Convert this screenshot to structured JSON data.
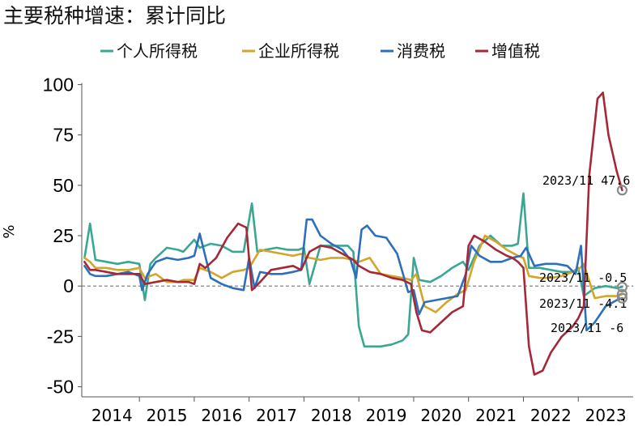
{
  "chart_data": {
    "type": "line",
    "title": "主要税种增速：累计同比",
    "ylabel": "%",
    "ylim": [
      -55,
      105
    ],
    "yticks": [
      100,
      75,
      50,
      25,
      0,
      -25,
      -50
    ],
    "xlim": [
      2013.95,
      2024.0
    ],
    "year_labels": [
      "2014",
      "2015",
      "2016",
      "2017",
      "2018",
      "2019",
      "2020",
      "2021",
      "2022",
      "2023"
    ],
    "year_centers": [
      2014.5,
      2015.5,
      2016.5,
      2017.5,
      2018.5,
      2019.5,
      2020.5,
      2021.5,
      2022.5,
      2023.5
    ],
    "year_boundaries": [
      2015,
      2016,
      2017,
      2018,
      2019,
      2020,
      2021,
      2022,
      2023
    ],
    "zero_line": true,
    "legend_position": "top",
    "series": [
      {
        "name": "个人所得税",
        "color": "#3aa792",
        "x": [
          2014.0,
          2014.1,
          2014.2,
          2014.4,
          2014.6,
          2014.8,
          2015.0,
          2015.1,
          2015.2,
          2015.3,
          2015.5,
          2015.7,
          2015.8,
          2016.0,
          2016.1,
          2016.3,
          2016.5,
          2016.7,
          2016.9,
          2017.05,
          2017.15,
          2017.3,
          2017.5,
          2017.7,
          2017.9,
          2018.0,
          2018.1,
          2018.3,
          2018.5,
          2018.8,
          2018.9,
          2019.0,
          2019.1,
          2019.2,
          2019.4,
          2019.6,
          2019.8,
          2019.9,
          2020.0,
          2020.1,
          2020.3,
          2020.5,
          2020.7,
          2020.9,
          2021.0,
          2021.2,
          2021.4,
          2021.6,
          2021.8,
          2021.9,
          2022.0,
          2022.1,
          2022.3,
          2022.5,
          2022.7,
          2022.9,
          2023.0,
          2023.1,
          2023.3,
          2023.5,
          2023.7,
          2023.8
        ],
        "y": [
          14,
          31,
          13,
          12,
          11,
          12,
          11,
          -7,
          11,
          14,
          19,
          18,
          17,
          23,
          19,
          21,
          20,
          17,
          17,
          41,
          17,
          18,
          19,
          18,
          18,
          19,
          1,
          20,
          20,
          20,
          17,
          -20,
          -30,
          -30,
          -30,
          -29,
          -27,
          -24,
          14,
          3,
          2,
          5,
          9,
          12,
          8,
          20,
          25,
          20,
          20,
          21,
          46,
          9,
          9,
          8,
          7,
          7,
          9,
          -5,
          -1,
          0,
          -1,
          -0.5
        ]
      },
      {
        "name": "企业所得税",
        "color": "#d4a528",
        "x": [
          2014.0,
          2014.1,
          2014.2,
          2014.4,
          2014.6,
          2014.8,
          2015.0,
          2015.1,
          2015.3,
          2015.5,
          2015.7,
          2015.8,
          2016.0,
          2016.1,
          2016.3,
          2016.5,
          2016.7,
          2016.9,
          2017.0,
          2017.2,
          2017.4,
          2017.6,
          2017.8,
          2017.95,
          2018.1,
          2018.3,
          2018.5,
          2018.7,
          2018.9,
          2019.0,
          2019.2,
          2019.4,
          2019.6,
          2019.8,
          2019.95,
          2020.05,
          2020.2,
          2020.4,
          2020.6,
          2020.8,
          2020.95,
          2021.1,
          2021.3,
          2021.5,
          2021.7,
          2021.9,
          2022.0,
          2022.1,
          2022.3,
          2022.5,
          2022.7,
          2022.9,
          2023.0,
          2023.1,
          2023.3,
          2023.5,
          2023.7,
          2023.8
        ],
        "y": [
          14,
          12,
          9,
          9,
          8,
          8,
          9,
          4,
          6,
          2,
          2,
          3,
          3,
          9,
          7,
          4,
          7,
          8,
          9,
          18,
          17,
          16,
          15,
          16,
          14,
          13,
          14,
          14,
          13,
          12,
          14,
          6,
          5,
          4,
          3,
          6,
          -10,
          -13,
          -8,
          -4,
          -2,
          12,
          25,
          22,
          18,
          15,
          14,
          5,
          4,
          4,
          5,
          7,
          8,
          11,
          -6,
          -5,
          -5,
          -4.1
        ]
      },
      {
        "name": "消费税",
        "color": "#2e6fba",
        "x": [
          2014.0,
          2014.1,
          2014.2,
          2014.4,
          2014.6,
          2014.8,
          2015.0,
          2015.05,
          2015.15,
          2015.3,
          2015.5,
          2015.7,
          2015.9,
          2016.0,
          2016.1,
          2016.3,
          2016.5,
          2016.7,
          2016.9,
          2017.0,
          2017.1,
          2017.2,
          2017.4,
          2017.6,
          2017.8,
          2017.95,
          2018.05,
          2018.15,
          2018.3,
          2018.5,
          2018.7,
          2018.85,
          2018.95,
          2019.05,
          2019.15,
          2019.3,
          2019.5,
          2019.7,
          2019.9,
          2020.0,
          2020.1,
          2020.2,
          2020.4,
          2020.6,
          2020.8,
          2020.95,
          2021.05,
          2021.2,
          2021.4,
          2021.6,
          2021.8,
          2021.95,
          2022.05,
          2022.2,
          2022.4,
          2022.6,
          2022.8,
          2022.95,
          2023.05,
          2023.15,
          2023.3,
          2023.5,
          2023.7,
          2023.8
        ],
        "y": [
          10,
          6,
          5,
          5,
          6,
          7,
          5,
          -2,
          6,
          12,
          14,
          13,
          14,
          15,
          26,
          4,
          1,
          -1,
          -2,
          14,
          -1,
          7,
          6,
          6,
          7,
          8,
          33,
          33,
          25,
          21,
          18,
          13,
          4,
          28,
          30,
          25,
          24,
          16,
          -3,
          -2,
          -14,
          -8,
          -7,
          -6,
          -5,
          6,
          20,
          15,
          12,
          12,
          14,
          15,
          19,
          10,
          11,
          11,
          10,
          6,
          20,
          -22,
          -18,
          -10,
          -7,
          -6
        ]
      },
      {
        "name": "增值税",
        "color": "#a62838",
        "x": [
          2014.0,
          2014.1,
          2014.2,
          2014.4,
          2014.6,
          2014.8,
          2015.0,
          2015.1,
          2015.3,
          2015.5,
          2015.7,
          2015.9,
          2016.0,
          2016.1,
          2016.2,
          2016.4,
          2016.6,
          2016.8,
          2016.95,
          2017.05,
          2017.2,
          2017.4,
          2017.6,
          2017.8,
          2017.95,
          2018.1,
          2018.3,
          2018.5,
          2018.7,
          2018.9,
          2019.0,
          2019.2,
          2019.4,
          2019.6,
          2019.8,
          2019.95,
          2020.05,
          2020.15,
          2020.3,
          2020.5,
          2020.7,
          2020.9,
          2021.0,
          2021.1,
          2021.3,
          2021.5,
          2021.7,
          2021.8,
          2021.9,
          2022.0,
          2022.1,
          2022.2,
          2022.35,
          2022.5,
          2022.7,
          2022.9,
          2023.0,
          2023.1,
          2023.2,
          2023.35,
          2023.45,
          2023.55,
          2023.7,
          2023.8
        ],
        "y": [
          12,
          8,
          8,
          7,
          6,
          6,
          6,
          1,
          2,
          3,
          2,
          2,
          1,
          11,
          9,
          14,
          24,
          31,
          29,
          -2,
          2,
          8,
          9,
          10,
          8,
          17,
          20,
          19,
          16,
          13,
          10,
          7,
          6,
          4,
          3,
          1,
          -13,
          -22,
          -23,
          -18,
          -13,
          -10,
          20,
          25,
          22,
          18,
          15,
          14,
          12,
          9,
          -30,
          -44,
          -42,
          -33,
          -25,
          -20,
          -16,
          -10,
          55,
          93,
          96,
          75,
          57,
          47.6
        ]
      }
    ],
    "annotations": [
      {
        "text": "2023/11  47.6",
        "series": "增值税",
        "x": 2023.8,
        "y": 47.6
      },
      {
        "text": "2023/11  -0.5",
        "series": "个人所得税",
        "x": 2023.8,
        "y": -0.5
      },
      {
        "text": "2023/11  -4.1",
        "series": "企业所得税",
        "x": 2023.8,
        "y": -4.1
      },
      {
        "text": "2023/11  -6",
        "series": "消费税",
        "x": 2023.8,
        "y": -6
      }
    ]
  }
}
